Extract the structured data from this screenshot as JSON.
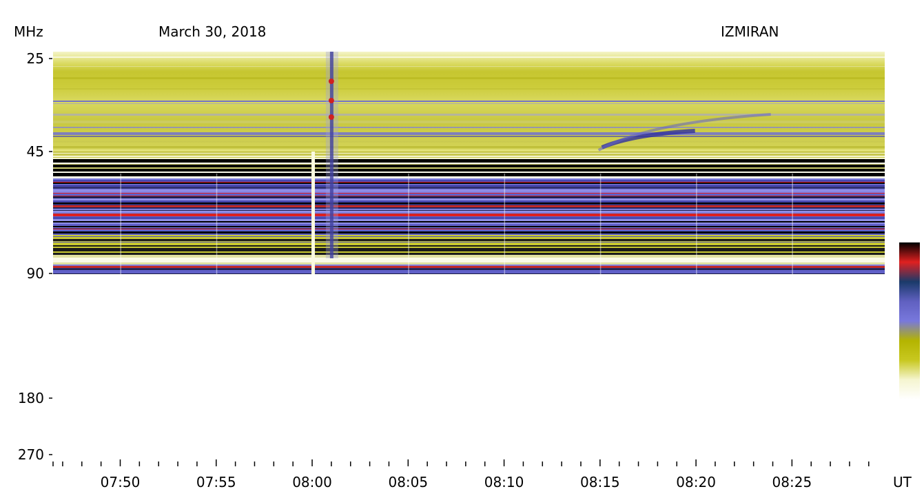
{
  "chart_data": {
    "type": "heatmap",
    "title": "March 30, 2018",
    "observatory": "IZMIRAN",
    "ylabel": "MHz",
    "xlabel": "UT",
    "y_ticks": [
      "25",
      "45",
      "90",
      "180",
      "270"
    ],
    "x_ticks": [
      "07:50",
      "07:55",
      "08:00",
      "08:05",
      "08:10",
      "08:15",
      "08:20",
      "08:25"
    ],
    "time_range": [
      "07:46:30",
      "08:29:50"
    ],
    "colorbar": [
      "#ffffff",
      "#f5f5d0",
      "#c8c820",
      "#b4b400",
      "#7878dc",
      "#6060c0",
      "#1a3a6a",
      "#e02020",
      "#000000"
    ],
    "events": [
      {
        "kind": "type III burst",
        "time": "08:01"
      },
      {
        "kind": "drifting feature",
        "time": "08:16"
      }
    ]
  }
}
